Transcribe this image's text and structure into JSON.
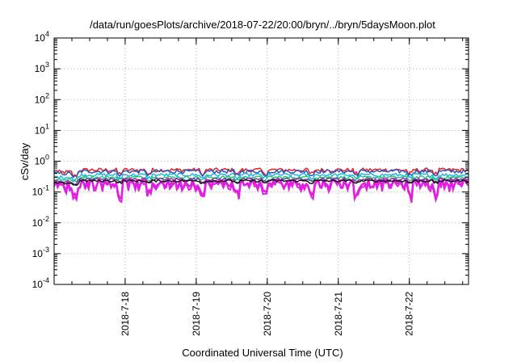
{
  "chart_data": {
    "type": "line",
    "title": "/data/run/goesPlots/archive/2018-07-22/20:00/bryn/../bryn/5daysMoon.plot",
    "xlabel": "Coordinated Universal Time (UTC)",
    "ylabel": "cSv/day",
    "yscale": "log",
    "ylim": [
      0.0001,
      10000
    ],
    "xlim": [
      "2018-07-17 00:00",
      "2018-07-22 20:00"
    ],
    "grid": true,
    "legend": "none",
    "y_ticks": [
      {
        "base": "10",
        "exp": "-4"
      },
      {
        "base": "10",
        "exp": "-3"
      },
      {
        "base": "10",
        "exp": "-2"
      },
      {
        "base": "10",
        "exp": "-1"
      },
      {
        "base": "10",
        "exp": "0"
      },
      {
        "base": "10",
        "exp": "1"
      },
      {
        "base": "10",
        "exp": "2"
      },
      {
        "base": "10",
        "exp": "3"
      },
      {
        "base": "10",
        "exp": "4"
      }
    ],
    "x_ticks": [
      "2018-7-18",
      "2018-7-19",
      "2018-7-20",
      "2018-7-21",
      "2018-7-22"
    ],
    "series": [
      {
        "color": "#e8211f",
        "level": 0.52,
        "var": 0.15
      },
      {
        "color": "#2f52c0",
        "level": 0.47,
        "var": 0.14
      },
      {
        "color": "#1fb8d8",
        "level": 0.36,
        "var": 0.12
      },
      {
        "color": "#2ec27e",
        "level": 0.3,
        "var": 0.1
      },
      {
        "color": "#6a3d9a",
        "level": 0.26,
        "var": 0.1
      },
      {
        "color": "#e020e0",
        "level": 0.2,
        "var": 0.35
      },
      {
        "color": "#111111",
        "level": 0.23,
        "var": 0.08
      }
    ]
  }
}
